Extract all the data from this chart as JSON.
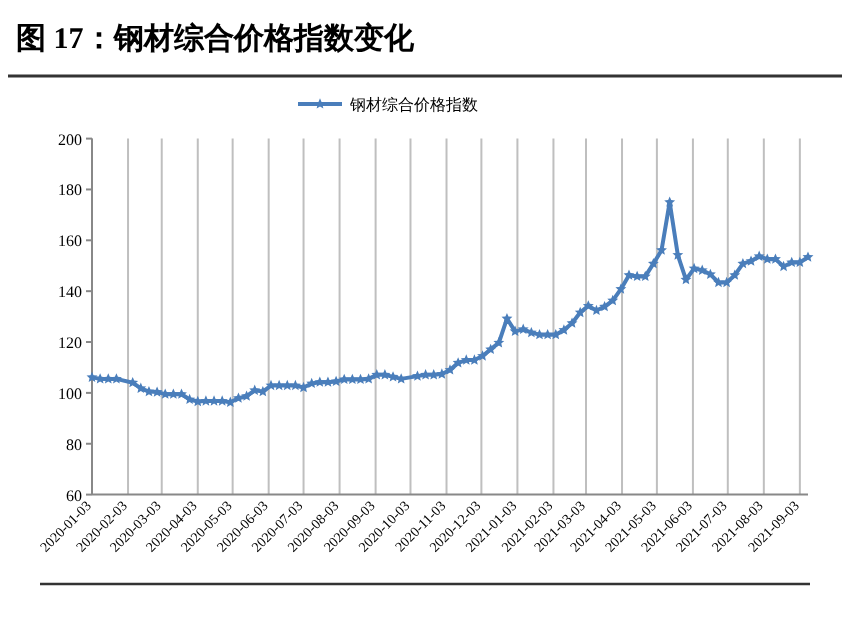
{
  "chart_data": {
    "type": "line",
    "title": "图 17：钢材综合价格指数变化",
    "x": [
      "2020-01-03",
      "2020-01-10",
      "2020-01-17",
      "2020-01-24",
      "2020-02-07",
      "2020-02-14",
      "2020-02-21",
      "2020-02-28",
      "2020-03-06",
      "2020-03-13",
      "2020-03-20",
      "2020-03-27",
      "2020-04-03",
      "2020-04-10",
      "2020-04-17",
      "2020-04-24",
      "2020-05-01",
      "2020-05-08",
      "2020-05-15",
      "2020-05-22",
      "2020-05-29",
      "2020-06-05",
      "2020-06-12",
      "2020-06-19",
      "2020-06-26",
      "2020-07-03",
      "2020-07-10",
      "2020-07-17",
      "2020-07-24",
      "2020-07-31",
      "2020-08-07",
      "2020-08-14",
      "2020-08-21",
      "2020-08-28",
      "2020-09-04",
      "2020-09-11",
      "2020-09-18",
      "2020-09-25",
      "2020-10-09",
      "2020-10-16",
      "2020-10-23",
      "2020-10-30",
      "2020-11-06",
      "2020-11-13",
      "2020-11-20",
      "2020-11-27",
      "2020-12-04",
      "2020-12-11",
      "2020-12-18",
      "2020-12-25",
      "2021-01-01",
      "2021-01-08",
      "2021-01-15",
      "2021-01-22",
      "2021-01-29",
      "2021-02-05",
      "2021-02-12",
      "2021-02-19",
      "2021-02-26",
      "2021-03-05",
      "2021-03-12",
      "2021-03-19",
      "2021-03-26",
      "2021-04-02",
      "2021-04-09",
      "2021-04-16",
      "2021-04-23",
      "2021-04-30",
      "2021-05-07",
      "2021-05-14",
      "2021-05-21",
      "2021-05-28",
      "2021-06-04",
      "2021-06-11",
      "2021-06-18",
      "2021-06-25",
      "2021-07-02",
      "2021-07-09",
      "2021-07-16",
      "2021-07-23",
      "2021-07-30",
      "2021-08-06",
      "2021-08-13",
      "2021-08-20",
      "2021-08-27",
      "2021-09-03",
      "2021-09-10"
    ],
    "series": [
      {
        "name": "钢材综合价格指数",
        "color": "#4a7ebb",
        "values": [
          106.1,
          105.5,
          105.5,
          105.5,
          104,
          101.8,
          100.5,
          100.3,
          99.5,
          99.5,
          99.5,
          97.4,
          96.6,
          96.8,
          96.8,
          96.8,
          96.3,
          97.9,
          98.7,
          101,
          100.5,
          102.9,
          102.9,
          102.9,
          102.9,
          102.1,
          103.7,
          104.2,
          104.2,
          104.5,
          105.3,
          105.3,
          105.3,
          105.5,
          107.1,
          107.1,
          106.3,
          105.5,
          106.6,
          107.1,
          107.1,
          107.4,
          109,
          111.8,
          112.9,
          112.9,
          114.5,
          117.1,
          119.7,
          129.2,
          124.2,
          125,
          123.7,
          122.9,
          122.9,
          122.9,
          124.7,
          127.4,
          131.6,
          134.2,
          132.4,
          133.9,
          136.3,
          140.8,
          146.3,
          145.8,
          145.8,
          150.8,
          156.1,
          175,
          154.2,
          144.5,
          148.9,
          148.2,
          146.6,
          143.4,
          143.4,
          146.3,
          150.8,
          151.8,
          153.7,
          152.6,
          152.6,
          149.7,
          151.3,
          151.3,
          153.4
        ]
      }
    ],
    "xlim": [
      "2020-01-03",
      "2021-09-10"
    ],
    "xticks": [
      "2020-01-03",
      "2020-02-03",
      "2020-03-03",
      "2020-04-03",
      "2020-05-03",
      "2020-06-03",
      "2020-07-03",
      "2020-08-03",
      "2020-09-03",
      "2020-10-03",
      "2020-11-03",
      "2020-12-03",
      "2021-01-03",
      "2021-02-03",
      "2021-03-03",
      "2021-04-03",
      "2021-05-03",
      "2021-06-03",
      "2021-07-03",
      "2021-08-03",
      "2021-09-03"
    ],
    "ylim": [
      60,
      200
    ],
    "yticks": [
      60,
      80,
      100,
      120,
      140,
      160,
      180,
      200
    ],
    "grid": "x",
    "legend": "top",
    "marker": "star",
    "line_style": "solid"
  }
}
